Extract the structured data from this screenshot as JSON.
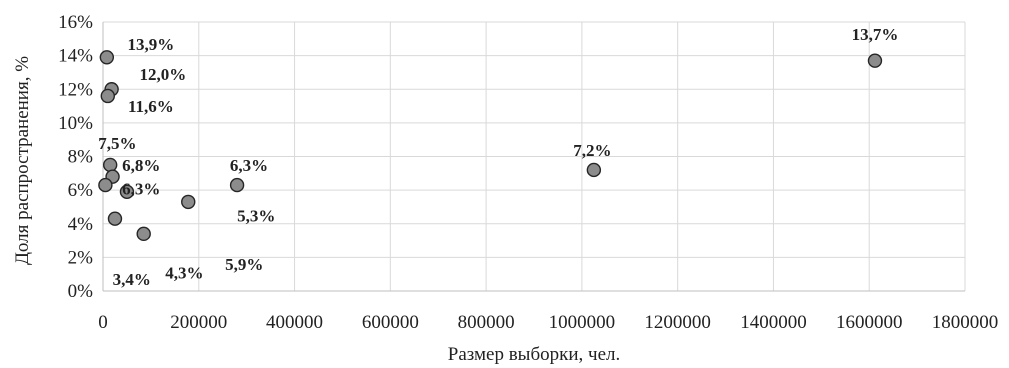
{
  "chart_data": {
    "type": "scatter",
    "title": "",
    "xlabel": "Размер выборки, чел.",
    "ylabel": "Доля распространения, %",
    "xlim": [
      0,
      1800000
    ],
    "ylim": [
      0,
      16
    ],
    "x_ticks": [
      0,
      200000,
      400000,
      600000,
      800000,
      1000000,
      1200000,
      1400000,
      1600000,
      1800000
    ],
    "x_tick_labels": [
      "0",
      "200000",
      "400000",
      "600000",
      "800000",
      "1000000",
      "1200000",
      "1400000",
      "1600000",
      "1800000"
    ],
    "y_ticks": [
      0,
      2,
      4,
      6,
      8,
      10,
      12,
      14,
      16
    ],
    "y_tick_labels": [
      "0%",
      "2%",
      "4%",
      "6%",
      "8%",
      "10%",
      "12%",
      "14%",
      "16%"
    ],
    "grid": true,
    "legend": "none",
    "marker_color": "#8c8c8c",
    "points": [
      {
        "x": 8000,
        "y": 13.9,
        "label": "13,9%"
      },
      {
        "x": 18000,
        "y": 12.0,
        "label": "12,0%"
      },
      {
        "x": 10000,
        "y": 11.6,
        "label": "11,6%"
      },
      {
        "x": 15000,
        "y": 7.5,
        "label": "7,5%"
      },
      {
        "x": 20000,
        "y": 6.8,
        "label": "6,8%"
      },
      {
        "x": 5000,
        "y": 6.3,
        "label": "6,3%"
      },
      {
        "x": 50000,
        "y": 5.9,
        "label": "5,9%"
      },
      {
        "x": 25000,
        "y": 4.3,
        "label": "4,3%"
      },
      {
        "x": 85000,
        "y": 3.4,
        "label": "3,4%"
      },
      {
        "x": 178000,
        "y": 5.3,
        "label": "5,3%"
      },
      {
        "x": 280000,
        "y": 6.3,
        "label": "6,3%"
      },
      {
        "x": 1025000,
        "y": 7.2,
        "label": "7,2%"
      },
      {
        "x": 1612000,
        "y": 13.7,
        "label": "13,7%"
      }
    ],
    "label_positions": [
      {
        "x": 100000,
        "y": 14.7
      },
      {
        "x": 125000,
        "y": 12.9
      },
      {
        "x": 100000,
        "y": 11.0
      },
      {
        "x": 30000,
        "y": 8.8
      },
      {
        "x": 80000,
        "y": 7.5
      },
      {
        "x": 80000,
        "y": 6.1
      },
      {
        "x": 295000,
        "y": 1.6
      },
      {
        "x": 170000,
        "y": 1.1
      },
      {
        "x": 60000,
        "y": 0.7
      },
      {
        "x": 320000,
        "y": 4.5
      },
      {
        "x": 305000,
        "y": 7.5
      },
      {
        "x": 1022000,
        "y": 8.4
      },
      {
        "x": 1612000,
        "y": 15.3
      }
    ]
  }
}
